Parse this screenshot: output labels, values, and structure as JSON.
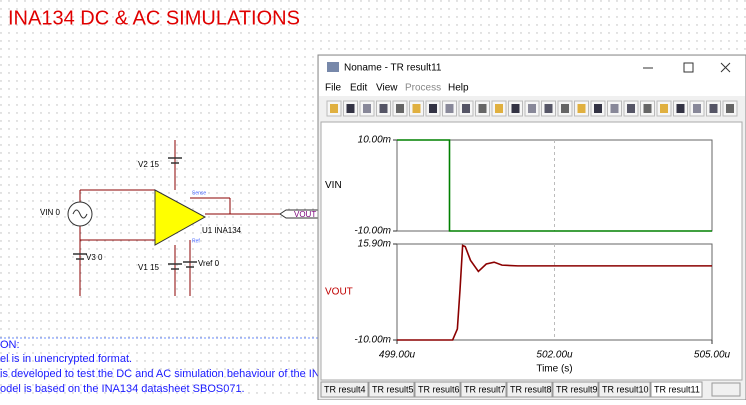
{
  "title": "INA134 DC & AC SIMULATIONS",
  "schematic": {
    "labels": [
      "V2 15",
      "VIN 0",
      "V3 0",
      "V1 15",
      "Vref 0",
      "U1 INA134",
      "VOUT",
      "Sense",
      "Ref"
    ]
  },
  "description": [
    "ON:",
    "el is in unencrypted format.",
    "is developed to test the DC and AC simulation behaviour of the IN",
    "odel is based on the INA134 datasheet SBOS071."
  ],
  "window": {
    "title": "Noname - TR result11",
    "menu": [
      "File",
      "Edit",
      "View",
      "Process",
      "Help"
    ],
    "tabs": [
      "TR result4",
      "TR result5",
      "TR result6",
      "TR result7",
      "TR result8",
      "TR result9",
      "TR result10",
      "TR result11"
    ]
  },
  "chart_data": [
    {
      "type": "line",
      "ylabel": "VIN",
      "color": "#008000",
      "x": [
        499,
        500,
        500,
        505
      ],
      "values": [
        0.01,
        0.01,
        -0.01,
        -0.01
      ],
      "xlim": [
        499,
        505
      ],
      "xticks": [
        502
      ],
      "ylim": [
        -0.01,
        0.01
      ],
      "yticks": [
        {
          "value": 0.01,
          "label": "10.00m"
        },
        {
          "value": -0.01,
          "label": "-10.00m"
        }
      ]
    },
    {
      "type": "line",
      "ylabel": "VOUT",
      "color": "#8b0000",
      "xlabel": "Time (s)",
      "x": [
        499,
        500,
        500.06,
        500.15,
        500.2,
        500.25,
        500.3,
        500.4,
        500.55,
        500.7,
        500.85,
        501,
        501.3,
        505
      ],
      "values": [
        -0.01,
        -0.01,
        -0.01,
        -0.007,
        0.0035,
        0.0155,
        0.0152,
        0.0115,
        0.0085,
        0.0105,
        0.011,
        0.0102,
        0.01,
        0.01
      ],
      "xlim": [
        499,
        505
      ],
      "xticks": [
        {
          "value": 499,
          "label": "499.00u"
        },
        {
          "value": 502,
          "label": "502.00u"
        },
        {
          "value": 505,
          "label": "505.00u"
        }
      ],
      "ylim": [
        -0.01,
        0.0159
      ],
      "yticks": [
        {
          "value": 0.0159,
          "label": "15.90m"
        },
        {
          "value": -0.01,
          "label": "-10.00m"
        }
      ]
    }
  ]
}
